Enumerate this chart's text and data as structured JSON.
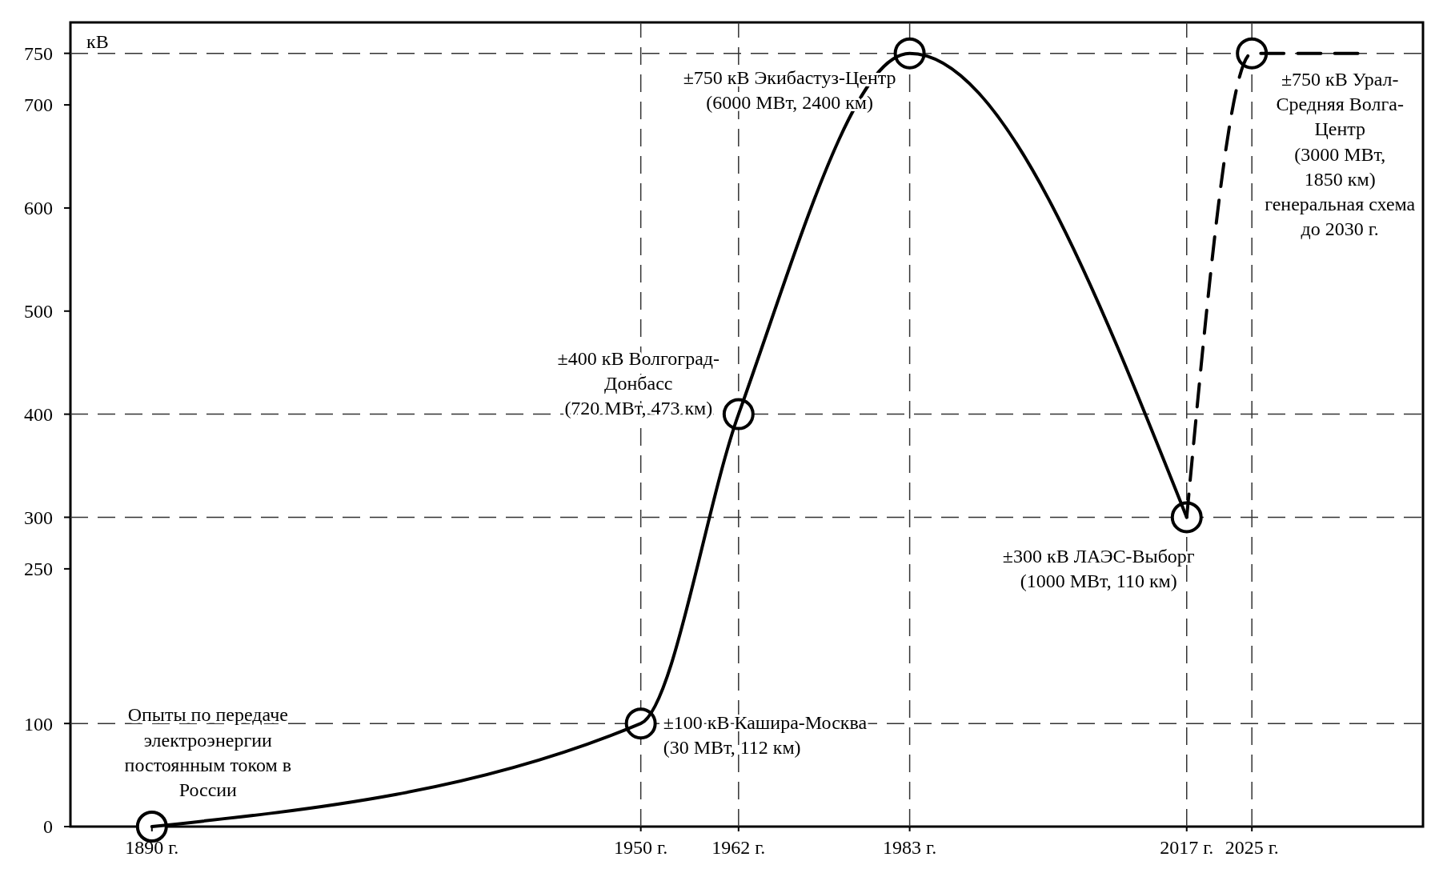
{
  "chart_data": {
    "type": "line",
    "ylabel": "кВ",
    "xlim": [
      1880,
      2046
    ],
    "ylim": [
      0,
      780
    ],
    "xticks": [
      {
        "value": 1890,
        "label": "1890 г."
      },
      {
        "value": 1950,
        "label": "1950 г."
      },
      {
        "value": 1962,
        "label": "1962 г."
      },
      {
        "value": 1983,
        "label": "1983 г."
      },
      {
        "value": 2017,
        "label": "2017 г."
      },
      {
        "value": 2025,
        "label": "2025 г."
      }
    ],
    "yticks": [
      0,
      100,
      250,
      300,
      400,
      500,
      600,
      700,
      750
    ],
    "grid": false,
    "series": [
      {
        "color": "#000000",
        "line_style": "solid",
        "marker": "none",
        "x": [
          1890,
          1950,
          1962,
          1983,
          2017
        ],
        "values": [
          0,
          100,
          400,
          750,
          300
        ]
      },
      {
        "color": "#000000",
        "line_style": "dashed",
        "marker": "none",
        "x": [
          2017,
          2025,
          2038
        ],
        "values": [
          300,
          750,
          750
        ]
      },
      {
        "type": "scatter",
        "color": "#000000",
        "marker": "circle",
        "x": [
          1890,
          1950,
          1962,
          1983,
          2017,
          2025
        ],
        "values": [
          0,
          100,
          400,
          750,
          300,
          750
        ]
      }
    ],
    "ref_lines": [
      {
        "axis": "y",
        "value": 100,
        "color": "#333333",
        "line_style": "dashed"
      },
      {
        "axis": "y",
        "value": 300,
        "color": "#333333",
        "line_style": "dashed"
      },
      {
        "axis": "y",
        "value": 400,
        "color": "#333333",
        "line_style": "dashed"
      },
      {
        "axis": "y",
        "value": 750,
        "color": "#333333",
        "line_style": "dashed"
      },
      {
        "axis": "x",
        "value": 1950,
        "color": "#333333",
        "line_style": "dashed"
      },
      {
        "axis": "x",
        "value": 1962,
        "color": "#333333",
        "line_style": "dashed"
      },
      {
        "axis": "x",
        "value": 1983,
        "color": "#333333",
        "line_style": "dashed"
      },
      {
        "axis": "x",
        "value": 2017,
        "color": "#333333",
        "line_style": "dashed"
      },
      {
        "axis": "x",
        "value": 2025,
        "color": "#333333",
        "line_style": "dashed"
      }
    ],
    "annotations": [
      {
        "text": "Опыты по передаче\nэлектроэнергии\nпостоянным током в\nРоссии",
        "x": 1890,
        "y": 0
      },
      {
        "text": "±100 кВ Кашира-Москва\n(30 МВт, 112 км)",
        "x": 1950,
        "y": 100
      },
      {
        "text": "±400 кВ Волгоград-\nДонбасс\n(720 МВт, 473 км)",
        "x": 1962,
        "y": 400
      },
      {
        "text": "±750 кВ Экибастуз-Центр\n(6000 МВт, 2400 км)",
        "x": 1983,
        "y": 750
      },
      {
        "text": "±300 кВ ЛАЭС-Выборг\n(1000 МВт, 110 км)",
        "x": 2017,
        "y": 300
      },
      {
        "text": "±750 кВ Урал-\nСредняя Волга-\nЦентр\n(3000 МВт,\n1850 км)\nгенеральная схема\nдо 2030 г.",
        "x": 2025,
        "y": 750
      }
    ]
  }
}
